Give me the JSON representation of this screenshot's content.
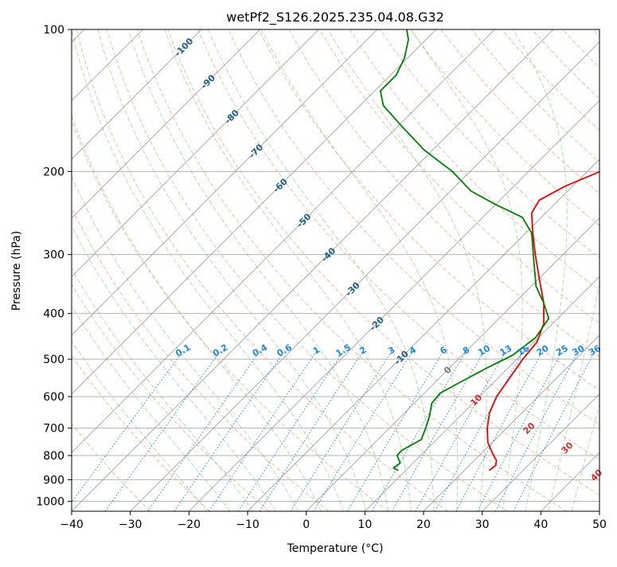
{
  "chart_data": {
    "type": "line",
    "title": "wetPf2_S126.2025.235.04.08.G32",
    "xlabel": "Temperature (°C)",
    "ylabel": "Pressure (hPa)",
    "xlim": [
      -40,
      50
    ],
    "ylim": [
      1050,
      100
    ],
    "x_ticks": [
      -40,
      -30,
      -20,
      -10,
      0,
      10,
      20,
      30,
      40,
      50
    ],
    "y_ticks": [
      1000,
      900,
      800,
      700,
      600,
      500,
      400,
      300,
      200,
      100
    ],
    "colors": {
      "temperature": "#ee0000",
      "dewpoint": "#008000",
      "isotherm": "#9a9a9a",
      "isobar": "#a8a8a8",
      "dry_adiabat": "#f4a582",
      "moist_adiabat": "#66bb66",
      "mixing_ratio": "#1e88e5",
      "isotherm_label": "#1f5f8b",
      "wetbulb_label": "#d32f2f"
    },
    "series": [
      {
        "name": "Temperature",
        "points": [
          {
            "p": 860,
            "t": 24.2
          },
          {
            "p": 840,
            "t": 24.5
          },
          {
            "p": 820,
            "t": 23.8
          },
          {
            "p": 790,
            "t": 21.8
          },
          {
            "p": 750,
            "t": 19.2
          },
          {
            "p": 700,
            "t": 16.7
          },
          {
            "p": 650,
            "t": 14.5
          },
          {
            "p": 600,
            "t": 12.9
          },
          {
            "p": 550,
            "t": 12.0
          },
          {
            "p": 500,
            "t": 11.0
          },
          {
            "p": 460,
            "t": 10.5
          },
          {
            "p": 420,
            "t": 8.5
          },
          {
            "p": 380,
            "t": 5.0
          },
          {
            "p": 340,
            "t": 0.4
          },
          {
            "p": 300,
            "t": -4.7
          },
          {
            "p": 270,
            "t": -8.8
          },
          {
            "p": 245,
            "t": -12.4
          },
          {
            "p": 230,
            "t": -13.3
          },
          {
            "p": 215,
            "t": -11.3
          },
          {
            "p": 200,
            "t": -7.8
          },
          {
            "p": 185,
            "t": -3.0
          },
          {
            "p": 170,
            "t": 0.0
          },
          {
            "p": 150,
            "t": 1.5
          },
          {
            "p": 130,
            "t": 2.5
          },
          {
            "p": 115,
            "t": 2.9
          },
          {
            "p": 105,
            "t": 4.5
          },
          {
            "p": 100,
            "t": 6.0
          }
        ]
      },
      {
        "name": "Dewpoint",
        "points": [
          {
            "p": 860,
            "t": 8.7
          },
          {
            "p": 850,
            "t": 7.5
          },
          {
            "p": 830,
            "t": 7.8
          },
          {
            "p": 800,
            "t": 6.0
          },
          {
            "p": 780,
            "t": 5.9
          },
          {
            "p": 740,
            "t": 7.4
          },
          {
            "p": 700,
            "t": 6.2
          },
          {
            "p": 660,
            "t": 4.8
          },
          {
            "p": 620,
            "t": 3.0
          },
          {
            "p": 590,
            "t": 2.7
          },
          {
            "p": 560,
            "t": 4.2
          },
          {
            "p": 520,
            "t": 6.5
          },
          {
            "p": 490,
            "t": 8.6
          },
          {
            "p": 450,
            "t": 9.5
          },
          {
            "p": 410,
            "t": 8.5
          },
          {
            "p": 380,
            "t": 5.0
          },
          {
            "p": 350,
            "t": 0.8
          },
          {
            "p": 310,
            "t": -3.8
          },
          {
            "p": 270,
            "t": -9.0
          },
          {
            "p": 250,
            "t": -13.3
          },
          {
            "p": 235,
            "t": -20.0
          },
          {
            "p": 220,
            "t": -26.5
          },
          {
            "p": 200,
            "t": -33.0
          },
          {
            "p": 180,
            "t": -41.5
          },
          {
            "p": 160,
            "t": -49.5
          },
          {
            "p": 145,
            "t": -56.0
          },
          {
            "p": 135,
            "t": -59.0
          },
          {
            "p": 125,
            "t": -59.0
          },
          {
            "p": 115,
            "t": -60.5
          },
          {
            "p": 105,
            "t": -63.0
          },
          {
            "p": 100,
            "t": -65.0
          }
        ]
      }
    ],
    "isotherm_labels": [
      "-100",
      "-90",
      "-80",
      "-70",
      "-60",
      "-50",
      "-40",
      "-30",
      "-20",
      "-10",
      "0"
    ],
    "mixing_ratio_labels": [
      "0.1",
      "0.2",
      "0.4",
      "0.6",
      "1",
      "1.5",
      "2",
      "3",
      "4",
      "6",
      "8",
      "10",
      "13",
      "16",
      "20",
      "25",
      "30",
      "36"
    ],
    "wetbulb_labels": [
      "10",
      "20",
      "30",
      "40"
    ]
  }
}
